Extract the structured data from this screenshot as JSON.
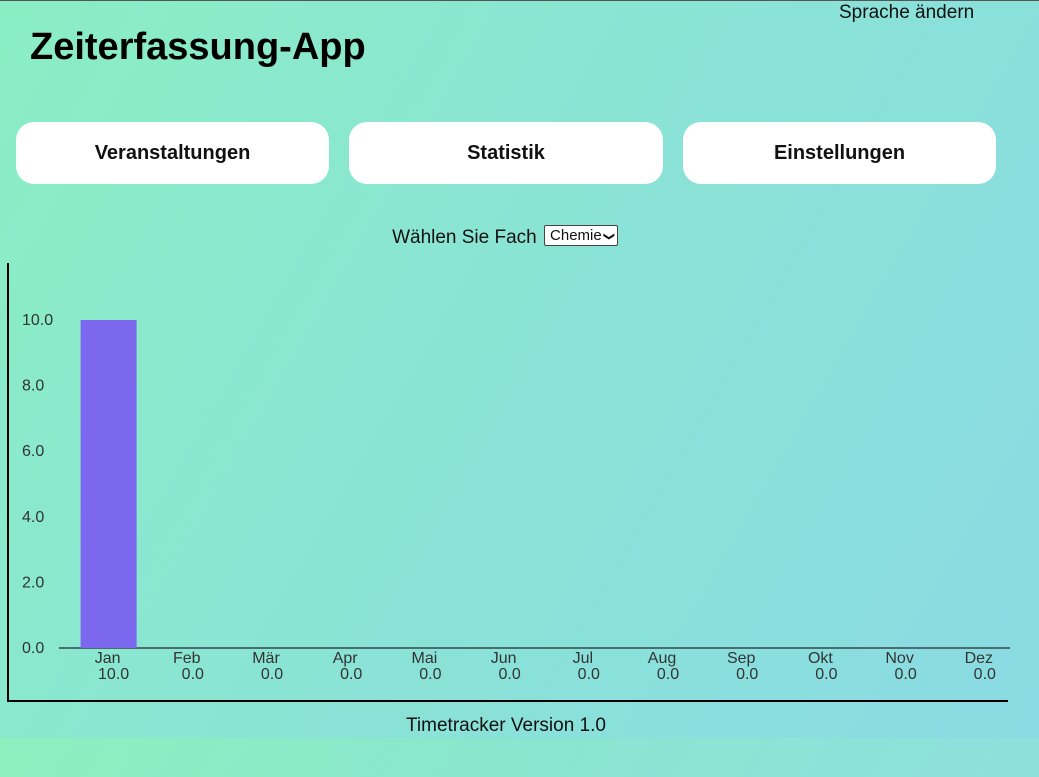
{
  "header": {
    "language_link": "Sprache ändern",
    "title": "Zeiterfassung-App"
  },
  "nav": {
    "events_label": "Veranstaltungen",
    "statistics_label": "Statistik",
    "settings_label": "Einstellungen"
  },
  "subject": {
    "label": "Wählen Sie Fach",
    "selected": "Chemie"
  },
  "colors": {
    "bar": "#7b68ee",
    "axis": "#4a6e70",
    "tick_text": "#333333"
  },
  "chart_data": {
    "type": "bar",
    "categories": [
      "Jan",
      "Feb",
      "Mär",
      "Apr",
      "Mai",
      "Jun",
      "Jul",
      "Aug",
      "Sep",
      "Okt",
      "Nov",
      "Dez"
    ],
    "values": [
      10.0,
      0.0,
      0.0,
      0.0,
      0.0,
      0.0,
      0.0,
      0.0,
      0.0,
      0.0,
      0.0,
      0.0
    ],
    "value_labels": [
      "10.0",
      "0.0",
      "0.0",
      "0.0",
      "0.0",
      "0.0",
      "0.0",
      "0.0",
      "0.0",
      "0.0",
      "0.0",
      "0.0"
    ],
    "y_ticks": [
      "0.0",
      "2.0",
      "4.0",
      "6.0",
      "8.0",
      "10.0"
    ],
    "ylim": [
      0,
      10
    ],
    "grid": false
  },
  "footer": {
    "version": "Timetracker Version 1.0"
  }
}
